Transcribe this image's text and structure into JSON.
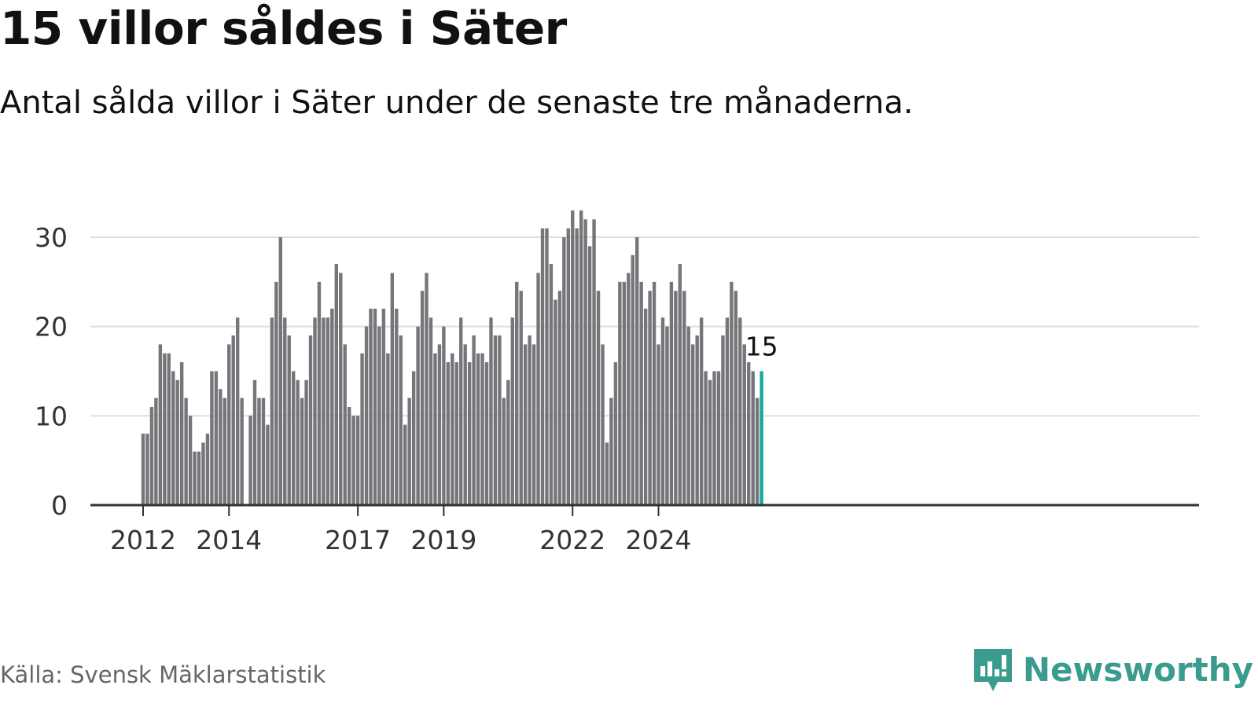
{
  "title": "15 villor såldes i Säter",
  "subtitle": "Antal sålda villor i Säter under de senaste tre månaderna.",
  "source": "Källa: Svensk Mäklarstatistik",
  "brand": {
    "name": "Newsworthy",
    "icon": "newsworthy-logo-icon"
  },
  "colors": {
    "bar": "#76757a",
    "highlight": "#14a89b",
    "grid": "#dddddd",
    "axis": "#333333",
    "text": "#333333",
    "brand": "#3a9c8e"
  },
  "chart_data": {
    "type": "bar",
    "title": "15 villor såldes i Säter",
    "xlabel": "",
    "ylabel": "",
    "ylim": [
      0,
      34
    ],
    "yticks": [
      0,
      10,
      20,
      30
    ],
    "xticks": [
      {
        "label": "2012",
        "index": 0
      },
      {
        "label": "2014",
        "index": 20
      },
      {
        "label": "2017",
        "index": 50
      },
      {
        "label": "2019",
        "index": 70
      },
      {
        "label": "2022",
        "index": 100
      },
      {
        "label": "2024",
        "index": 120
      }
    ],
    "start_period": "2012-01",
    "values": [
      8,
      8,
      11,
      12,
      18,
      17,
      17,
      15,
      14,
      16,
      12,
      10,
      6,
      6,
      7,
      8,
      15,
      15,
      13,
      12,
      18,
      19,
      21,
      12,
      null,
      10,
      14,
      12,
      12,
      9,
      21,
      25,
      30,
      21,
      19,
      15,
      14,
      12,
      14,
      19,
      21,
      25,
      21,
      21,
      22,
      27,
      26,
      18,
      11,
      10,
      10,
      17,
      20,
      22,
      22,
      20,
      22,
      17,
      26,
      22,
      19,
      9,
      12,
      15,
      20,
      24,
      26,
      21,
      17,
      18,
      20,
      16,
      17,
      16,
      21,
      18,
      16,
      19,
      17,
      17,
      16,
      21,
      19,
      19,
      12,
      14,
      21,
      25,
      24,
      18,
      19,
      18,
      26,
      31,
      31,
      27,
      23,
      24,
      30,
      31,
      33,
      31,
      33,
      32,
      29,
      32,
      24,
      18,
      7,
      12,
      16,
      25,
      25,
      26,
      28,
      30,
      25,
      22,
      24,
      25,
      18,
      21,
      20,
      25,
      24,
      27,
      24,
      20,
      18,
      19,
      21,
      15,
      14,
      15,
      15,
      19,
      21,
      25,
      24,
      21,
      18,
      16,
      15,
      12,
      15
    ],
    "highlight_index": 144,
    "highlight_label": "15"
  }
}
